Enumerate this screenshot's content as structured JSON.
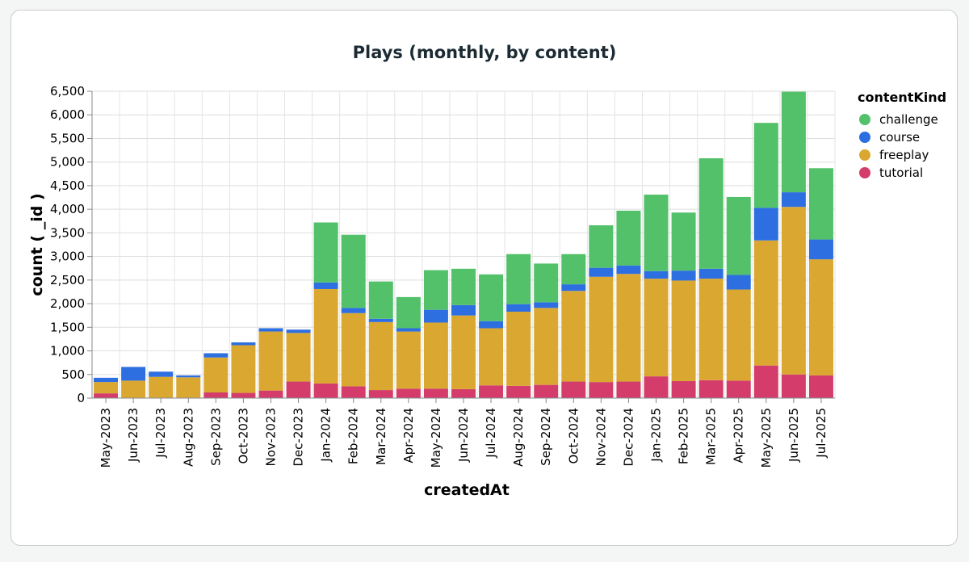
{
  "chart_data": {
    "type": "bar",
    "stacked": true,
    "title": "Plays (monthly, by content)",
    "xlabel": "createdAt",
    "ylabel": "count ( _id )",
    "ylim": [
      0,
      6500
    ],
    "yticks": [
      0,
      500,
      1000,
      1500,
      2000,
      2500,
      3000,
      3500,
      4000,
      4500,
      5000,
      5500,
      6000,
      6500
    ],
    "ytick_labels": [
      "0",
      "500",
      "1,000",
      "1,500",
      "2,000",
      "2,500",
      "3,000",
      "3,500",
      "4,000",
      "4,500",
      "5,000",
      "5,500",
      "6,000",
      "6,500"
    ],
    "grid": true,
    "legend_title": "contentKind",
    "legend_position": "right",
    "categories": [
      "May-2023",
      "Jun-2023",
      "Jul-2023",
      "Aug-2023",
      "Sep-2023",
      "Oct-2023",
      "Nov-2023",
      "Dec-2023",
      "Jan-2024",
      "Feb-2024",
      "Mar-2024",
      "Apr-2024",
      "May-2024",
      "Jun-2024",
      "Jul-2024",
      "Aug-2024",
      "Sep-2024",
      "Oct-2024",
      "Nov-2024",
      "Dec-2024",
      "Jan-2025",
      "Feb-2025",
      "Mar-2025",
      "Apr-2025",
      "May-2025",
      "Jun-2025",
      "Jul-2025"
    ],
    "series": [
      {
        "name": "tutorial",
        "color": "#d43d6b",
        "values": [
          100,
          0,
          0,
          0,
          120,
          110,
          160,
          350,
          310,
          250,
          170,
          200,
          200,
          190,
          270,
          260,
          280,
          350,
          340,
          350,
          460,
          360,
          380,
          370,
          690,
          500,
          480
        ]
      },
      {
        "name": "freeplay",
        "color": "#daa830",
        "values": [
          240,
          370,
          450,
          440,
          740,
          1010,
          1250,
          1030,
          2000,
          1550,
          1440,
          1210,
          1400,
          1560,
          1210,
          1570,
          1630,
          1920,
          2230,
          2280,
          2070,
          2130,
          2150,
          1930,
          2650,
          3550,
          2460
        ]
      },
      {
        "name": "course",
        "color": "#2d6ee0",
        "values": [
          90,
          290,
          110,
          40,
          90,
          60,
          70,
          70,
          140,
          110,
          70,
          70,
          270,
          220,
          150,
          160,
          120,
          140,
          190,
          180,
          160,
          210,
          210,
          310,
          690,
          310,
          420
        ]
      },
      {
        "name": "challenge",
        "color": "#52c16a",
        "values": [
          0,
          0,
          0,
          0,
          0,
          0,
          0,
          0,
          1270,
          1550,
          790,
          660,
          840,
          770,
          990,
          1060,
          820,
          640,
          900,
          1160,
          1620,
          1230,
          2340,
          1650,
          1800,
          2130,
          1510
        ]
      }
    ],
    "legend_order": [
      "challenge",
      "course",
      "freeplay",
      "tutorial"
    ]
  }
}
